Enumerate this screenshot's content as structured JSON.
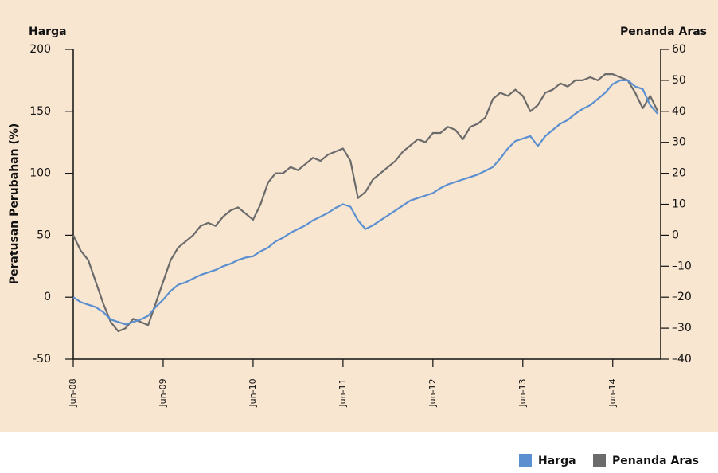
{
  "chart_data": {
    "type": "line",
    "ylabel": "Peratusan Perubahan (%)",
    "y_axis_title": "Harga",
    "y2_axis_title": "Penanda Aras",
    "categories": [
      "Jun-08",
      null,
      null,
      null,
      null,
      null,
      null,
      null,
      null,
      null,
      null,
      null,
      "Jun-09",
      null,
      null,
      null,
      null,
      null,
      null,
      null,
      null,
      null,
      null,
      null,
      "Jun-10",
      null,
      null,
      null,
      null,
      null,
      null,
      null,
      null,
      null,
      null,
      null,
      "Jun-11",
      null,
      null,
      null,
      null,
      null,
      null,
      null,
      null,
      null,
      null,
      null,
      "Jun-12",
      null,
      null,
      null,
      null,
      null,
      null,
      null,
      null,
      null,
      null,
      null,
      "Jun-13",
      null,
      null,
      null,
      null,
      null,
      null,
      null,
      null,
      null,
      null,
      null,
      "Jun-14",
      null,
      null,
      null,
      null,
      null,
      null
    ],
    "series": [
      {
        "name": "Harga",
        "color": "#5b8fd0",
        "values": [
          0,
          -4,
          -6,
          -8,
          -12,
          -18,
          -20,
          -22,
          -20,
          -18,
          -15,
          -8,
          -2,
          5,
          10,
          12,
          15,
          18,
          20,
          22,
          25,
          27,
          30,
          32,
          33,
          37,
          40,
          45,
          48,
          52,
          55,
          58,
          62,
          65,
          68,
          72,
          75,
          73,
          62,
          55,
          58,
          62,
          66,
          70,
          74,
          78,
          80,
          82,
          84,
          88,
          91,
          93,
          95,
          97,
          99,
          102,
          105,
          112,
          120,
          126,
          128,
          130,
          122,
          130,
          135,
          140,
          143,
          148,
          152,
          155,
          160,
          165,
          172,
          175,
          175,
          170,
          168,
          155,
          148
        ]
      },
      {
        "name": "Penanda Aras",
        "color": "#6b6b6b",
        "axis": "y2",
        "values": [
          0,
          -5,
          -8,
          -15,
          -22,
          -28,
          -31,
          -30,
          -27,
          -28,
          -29,
          -22,
          -15,
          -8,
          -4,
          -2,
          0,
          3,
          4,
          3,
          6,
          8,
          9,
          7,
          5,
          10,
          17,
          20,
          20,
          22,
          21,
          23,
          25,
          24,
          26,
          27,
          28,
          24,
          12,
          14,
          18,
          20,
          22,
          24,
          27,
          29,
          31,
          30,
          33,
          33,
          35,
          34,
          31,
          35,
          36,
          38,
          44,
          46,
          45,
          47,
          45,
          40,
          42,
          46,
          47,
          49,
          48,
          50,
          50,
          51,
          50,
          52,
          52,
          51,
          50,
          46,
          41,
          45,
          40
        ]
      }
    ],
    "ylim": [
      -50,
      200
    ],
    "yticks": [
      -50,
      0,
      50,
      100,
      150,
      200
    ],
    "y2lim": [
      -40,
      60
    ],
    "y2ticks": [
      {
        "value": -40,
        "label": "–40"
      },
      {
        "value": -30,
        "label": "–30"
      },
      {
        "value": -20,
        "label": "–20"
      },
      {
        "value": -10,
        "label": "–10"
      },
      0,
      10,
      20,
      30,
      40,
      50,
      60
    ],
    "grid": false,
    "legend": "bottom-right"
  }
}
